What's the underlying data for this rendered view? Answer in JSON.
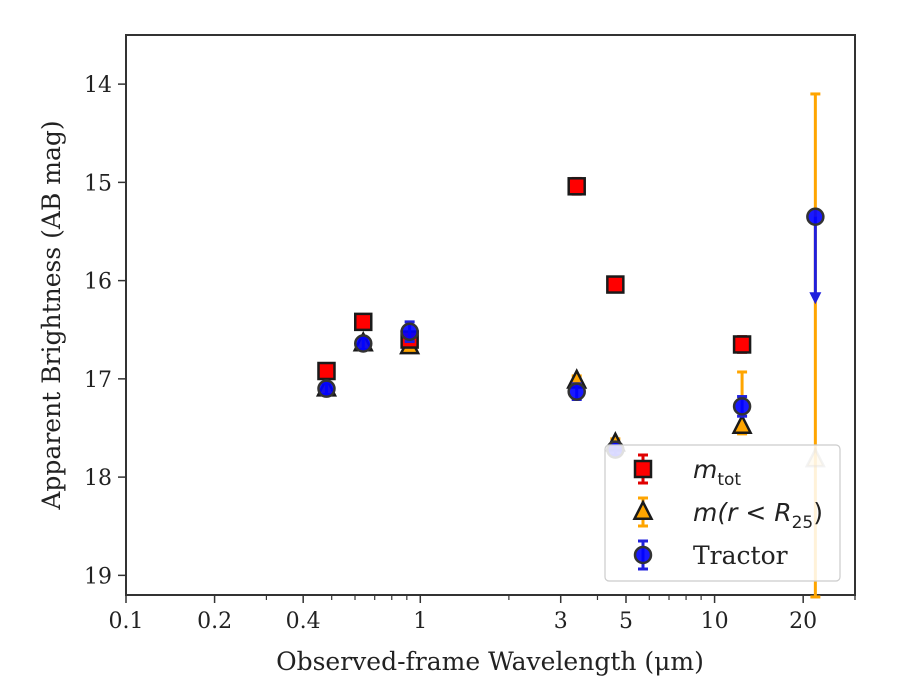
{
  "chart_data": {
    "type": "scatter",
    "xlabel": "Observed-frame Wavelength (μm)",
    "ylabel": "Apparent Brightness (AB mag)",
    "xscale": "log",
    "xlim": [
      0.1,
      30
    ],
    "ylim": [
      19.2,
      13.5
    ],
    "y_inverted": true,
    "x_ticks": [
      {
        "value": 0.1,
        "label": "0.1"
      },
      {
        "value": 0.2,
        "label": "0.2"
      },
      {
        "value": 0.4,
        "label": "0.4"
      },
      {
        "value": 1,
        "label": "1"
      },
      {
        "value": 3,
        "label": "3"
      },
      {
        "value": 5,
        "label": "5"
      },
      {
        "value": 10,
        "label": "10"
      },
      {
        "value": 20,
        "label": "20"
      }
    ],
    "y_ticks": [
      {
        "value": 14,
        "label": "14"
      },
      {
        "value": 15,
        "label": "15"
      },
      {
        "value": 16,
        "label": "16"
      },
      {
        "value": 17,
        "label": "17"
      },
      {
        "value": 18,
        "label": "18"
      },
      {
        "value": 19,
        "label": "19"
      }
    ],
    "legend_position": "bottom-right",
    "grid": false,
    "series": [
      {
        "name": "m_tot",
        "marker": "square",
        "color": "#ff0000",
        "edge_color": "#1a1a1a",
        "error_color": "#e00000",
        "points": [
          {
            "x": 0.48,
            "y": 16.92,
            "err": 0.05
          },
          {
            "x": 0.64,
            "y": 16.42,
            "err": 0.05
          },
          {
            "x": 0.92,
            "y": 16.6,
            "err": 0.05
          },
          {
            "x": 3.4,
            "y": 15.04,
            "err": 0.08
          },
          {
            "x": 4.6,
            "y": 16.04,
            "err": 0.07
          },
          {
            "x": 12.4,
            "y": 16.65,
            "err": 0.08
          }
        ]
      },
      {
        "name": "m(r < R25)",
        "marker": "triangle",
        "color": "#ffa500",
        "edge_color": "#1a1a1a",
        "error_color": "#ffa500",
        "points": [
          {
            "x": 0.48,
            "y": 17.1,
            "err": 0.05
          },
          {
            "x": 0.64,
            "y": 16.64,
            "err": 0.05
          },
          {
            "x": 0.92,
            "y": 16.67,
            "err": 0.05
          },
          {
            "x": 3.4,
            "y": 17.02,
            "err": 0.05
          },
          {
            "x": 4.6,
            "y": 17.66,
            "err": 0.05
          },
          {
            "x": 12.4,
            "y": 17.48,
            "err_low": 0.55,
            "err_high": 0.08
          },
          {
            "x": 22.0,
            "y": 17.82,
            "err_low": 3.72,
            "err_high": 1.4
          }
        ]
      },
      {
        "name": "Tractor",
        "marker": "circle",
        "color": "#0000ff",
        "edge_color": "#333333",
        "error_color": "#2020dd",
        "points": [
          {
            "x": 0.48,
            "y": 17.1,
            "err": 0.06
          },
          {
            "x": 0.64,
            "y": 16.64,
            "err": 0.06
          },
          {
            "x": 0.92,
            "y": 16.52,
            "err": 0.1
          },
          {
            "x": 3.4,
            "y": 17.13,
            "err": 0.08
          },
          {
            "x": 4.6,
            "y": 17.72,
            "err": 0.06
          },
          {
            "x": 12.4,
            "y": 17.28,
            "err": 0.1
          },
          {
            "x": 22.0,
            "y": 15.35,
            "upper_limit_to": 16.2
          }
        ]
      }
    ],
    "legend": [
      {
        "series": "m_tot",
        "base": "m",
        "sub": "tot",
        "suffix": ""
      },
      {
        "series": "m(r < R25)",
        "base": "m(r < R",
        "sub": "25",
        "suffix": ")"
      },
      {
        "series": "Tractor",
        "base": "Tractor",
        "sub": "",
        "suffix": ""
      }
    ]
  }
}
